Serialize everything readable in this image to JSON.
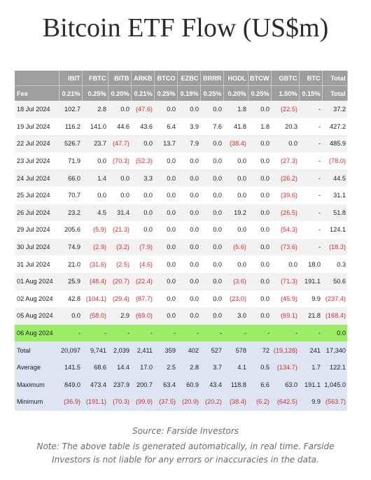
{
  "page": {
    "title": "Bitcoin ETF Flow (US$m)"
  },
  "chart_data": {
    "type": "table",
    "title": "Bitcoin ETF Flow (US$m)",
    "columns": [
      "",
      "IBIT",
      "FBTC",
      "BITB",
      "ARKB",
      "BTCO",
      "EZBC",
      "BRRR",
      "HODL",
      "BTCW",
      "GBTC",
      "BTC",
      "Total"
    ],
    "fee_row": [
      "Fee",
      "0.21%",
      "0.25%",
      "0.20%",
      "0.21%",
      "0.25%",
      "0.19%",
      "0.25%",
      "0.20%",
      "0.25%",
      "1.50%",
      "0.15%",
      "Total"
    ],
    "rows": [
      [
        "18 Jul 2024",
        "102.7",
        "2.8",
        "0.0",
        "(47.6)",
        "0.0",
        "0.0",
        "0.0",
        "1.8",
        "0.0",
        "(22.5)",
        "-",
        "37.2"
      ],
      [
        "19 Jul 2024",
        "116.2",
        "141.0",
        "44.6",
        "43.6",
        "6.4",
        "3.9",
        "7.6",
        "41.8",
        "1.8",
        "20.3",
        "-",
        "427.2"
      ],
      [
        "22 Jul 2024",
        "526.7",
        "23.7",
        "(47.7)",
        "0.0",
        "13.7",
        "7.9",
        "0.0",
        "(38.4)",
        "0.0",
        "0.0",
        "-",
        "485.9"
      ],
      [
        "23 Jul 2024",
        "71.9",
        "0.0",
        "(70.3)",
        "(52.3)",
        "0.0",
        "0.0",
        "0.0",
        "0.0",
        "0.0",
        "(27.3)",
        "-",
        "(78.0)"
      ],
      [
        "24 Jul 2024",
        "66.0",
        "1.4",
        "0.0",
        "3.3",
        "0.0",
        "0.0",
        "0.0",
        "0.0",
        "0.0",
        "(26.2)",
        "-",
        "44.5"
      ],
      [
        "25 Jul 2024",
        "70.7",
        "0.0",
        "0.0",
        "0.0",
        "0.0",
        "0.0",
        "0.0",
        "0.0",
        "0.0",
        "(39.6)",
        "-",
        "31.1"
      ],
      [
        "26 Jul 2024",
        "23.2",
        "4.5",
        "31.4",
        "0.0",
        "0.0",
        "0.0",
        "0.0",
        "19.2",
        "0.0",
        "(26.5)",
        "-",
        "51.8"
      ],
      [
        "29 Jul 2024",
        "205.6",
        "(5.9)",
        "(21.3)",
        "0.0",
        "0.0",
        "0.0",
        "0.0",
        "0.0",
        "0.0",
        "(54.3)",
        "-",
        "124.1"
      ],
      [
        "30 Jul 2024",
        "74.9",
        "(2.9)",
        "(3.2)",
        "(7.9)",
        "0.0",
        "0.0",
        "0.0",
        "(5.6)",
        "0.0",
        "(73.6)",
        "-",
        "(18.3)"
      ],
      [
        "31 Jul 2024",
        "21.0",
        "(31.6)",
        "(2.5)",
        "(4.6)",
        "0.0",
        "0.0",
        "0.0",
        "0.0",
        "0.0",
        "0.0",
        "18.0",
        "0.3"
      ],
      [
        "01 Aug 2024",
        "25.9",
        "(48.4)",
        "(20.7)",
        "(22.4)",
        "0.0",
        "0.0",
        "0.0",
        "(3.6)",
        "0.0",
        "(71.3)",
        "191.1",
        "50.6"
      ],
      [
        "02 Aug 2024",
        "42.8",
        "(104.1)",
        "(29.4)",
        "(87.7)",
        "0.0",
        "0.0",
        "0.0",
        "(23.0)",
        "0.0",
        "(45.9)",
        "9.9",
        "(237.4)"
      ],
      [
        "05 Aug 2024",
        "0.0",
        "(58.0)",
        "2.9",
        "(69.0)",
        "0.0",
        "0.0",
        "0.0",
        "3.0",
        "0.0",
        "(69.1)",
        "21.8",
        "(168.4)"
      ],
      [
        "06 Aug 2024",
        "-",
        "-",
        "-",
        "-",
        "-",
        "-",
        "-",
        "-",
        "-",
        "-",
        "-",
        "0.0"
      ]
    ],
    "highlight_row_color": "#99ee66",
    "summary": [
      [
        "Total",
        "20,097",
        "9,741",
        "2,039",
        "2,411",
        "359",
        "402",
        "527",
        "578",
        "72",
        "(19,128)",
        "241",
        "17,340"
      ],
      [
        "Average",
        "141.5",
        "68.6",
        "14.4",
        "17.0",
        "2.5",
        "2.8",
        "3.7",
        "4.1",
        "0.5",
        "(134.7)",
        "1.7",
        "122.1"
      ],
      [
        "Maximum",
        "849.0",
        "473.4",
        "237.9",
        "200.7",
        "63.4",
        "60.9",
        "43.4",
        "118.8",
        "6.6",
        "63.0",
        "191.1",
        "1,045.0"
      ],
      [
        "Minimum",
        "(36.9)",
        "(191.1)",
        "(70.3)",
        "(99.9)",
        "(37.5)",
        "(20.9)",
        "(20.2)",
        "(38.4)",
        "(6.2)",
        "(642.5)",
        "9.9",
        "(563.7)"
      ]
    ]
  },
  "footer": {
    "source": "Source: Farside Investors",
    "note": "Note: The above table is generated automatically, in real time. Farside Investors is not liable for any errors or inaccuracies in the data."
  }
}
